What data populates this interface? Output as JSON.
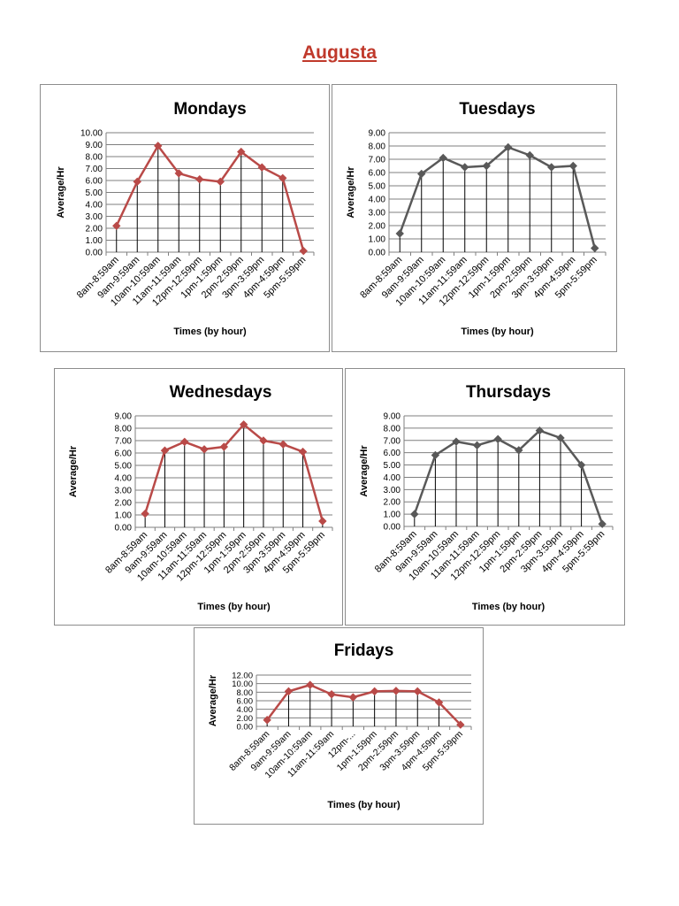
{
  "page_title": "Augusta",
  "chart_data": [
    {
      "type": "line",
      "title": "Mondays",
      "xlabel": "Times (by hour)",
      "ylabel": "Average/Hr",
      "categories": [
        "8am-8:59am",
        "9am-9:59am",
        "10am-10:59am",
        "11am-11:59am",
        "12pm-12:59pm",
        "1pm-1:59pm",
        "2pm-2:59pm",
        "3pm-3:59pm",
        "4pm-4:59pm",
        "5pm-5:59pm"
      ],
      "values": [
        2.2,
        5.9,
        8.9,
        6.6,
        6.1,
        5.9,
        8.4,
        7.1,
        6.2,
        0.1
      ],
      "ylim": [
        0,
        10
      ],
      "yticks": [
        "0.00",
        "1.00",
        "2.00",
        "3.00",
        "4.00",
        "5.00",
        "6.00",
        "7.00",
        "8.00",
        "9.00",
        "10.00"
      ],
      "color": "#b94a48",
      "marker": "diamond",
      "grid": true
    },
    {
      "type": "line",
      "title": "Tuesdays",
      "xlabel": "Times (by hour)",
      "ylabel": "Average/Hr",
      "categories": [
        "8am-8:59am",
        "9am-9:59am",
        "10am-10:59am",
        "11am-11:59am",
        "12pm-12:59pm",
        "1pm-1:59pm",
        "2pm-2:59pm",
        "3pm-3:59pm",
        "4pm-4:59pm",
        "5pm-5:59pm"
      ],
      "values": [
        1.4,
        5.9,
        7.1,
        6.4,
        6.5,
        7.9,
        7.3,
        6.4,
        6.5,
        0.3
      ],
      "ylim": [
        0,
        9
      ],
      "yticks": [
        "0.00",
        "1.00",
        "2.00",
        "3.00",
        "4.00",
        "5.00",
        "6.00",
        "7.00",
        "8.00",
        "9.00"
      ],
      "color": "#595959",
      "marker": "diamond",
      "grid": true
    },
    {
      "type": "line",
      "title": "Wednesdays",
      "xlabel": "Times (by hour)",
      "ylabel": "Average/Hr",
      "categories": [
        "8am-8:59am",
        "9am-9:59am",
        "10am-10:59am",
        "11am-11:59am",
        "12pm-12:59pm",
        "1pm-1:59pm",
        "2pm-2:59pm",
        "3pm-3:59pm",
        "4pm-4:59pm",
        "5pm-5:59pm"
      ],
      "values": [
        1.1,
        6.2,
        6.9,
        6.3,
        6.5,
        8.3,
        7.0,
        6.7,
        6.1,
        0.5
      ],
      "ylim": [
        0,
        9
      ],
      "yticks": [
        "0.00",
        "1.00",
        "2.00",
        "3.00",
        "4.00",
        "5.00",
        "6.00",
        "7.00",
        "8.00",
        "9.00"
      ],
      "color": "#b94a48",
      "marker": "diamond",
      "grid": true
    },
    {
      "type": "line",
      "title": "Thursdays",
      "xlabel": "Times (by hour)",
      "ylabel": "Average/Hr",
      "categories": [
        "8am-8:59am",
        "9am-9:59am",
        "10am-10:59am",
        "11am-11:59am",
        "12pm-12:59pm",
        "1pm-1:59pm",
        "2pm-2:59pm",
        "3pm-3:59pm",
        "4pm-4:59pm",
        "5pm-5:59pm"
      ],
      "values": [
        1.0,
        5.8,
        6.9,
        6.6,
        7.1,
        6.2,
        7.8,
        7.2,
        5.0,
        0.2
      ],
      "ylim": [
        0,
        9
      ],
      "yticks": [
        "0.00",
        "1.00",
        "2.00",
        "3.00",
        "4.00",
        "5.00",
        "6.00",
        "7.00",
        "8.00",
        "9.00"
      ],
      "color": "#595959",
      "marker": "diamond",
      "grid": true
    },
    {
      "type": "line",
      "title": "Fridays",
      "xlabel": "Times (by hour)",
      "ylabel": "Average/Hr",
      "categories": [
        "8am-8:59am",
        "9am-9:59am",
        "10am-10:59am",
        "11am-11:59am",
        "12pm-...",
        "1pm-1:59pm",
        "2pm-2:59pm",
        "3pm-3:59pm",
        "4pm-4:59pm",
        "5pm-5:59pm"
      ],
      "values": [
        1.5,
        8.2,
        9.7,
        7.5,
        6.8,
        8.2,
        8.3,
        8.2,
        5.6,
        0.4
      ],
      "ylim": [
        0,
        12
      ],
      "yticks": [
        "0.00",
        "2.00",
        "4.00",
        "6.00",
        "8.00",
        "10.00",
        "12.00"
      ],
      "color": "#b94a48",
      "marker": "diamond",
      "grid": true
    }
  ]
}
